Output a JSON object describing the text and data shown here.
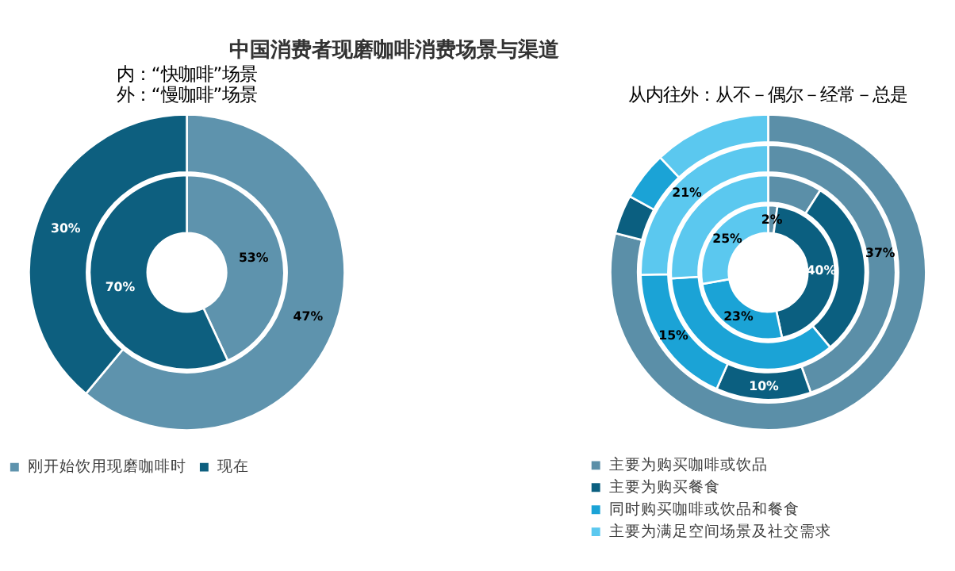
{
  "chart_data": [
    {
      "type": "donut",
      "title": "中国消费者现磨咖啡消费场景与渠道",
      "subtitle": [
        "内：“快咖啡”场景",
        "外：“慢咖啡”场景"
      ],
      "categories": [
        "刚开始饮用现磨咖啡时",
        "现在"
      ],
      "colors": [
        "#5e93ad",
        "#0d5f7f"
      ],
      "legend": "bottom",
      "series": [
        {
          "values": [
            53,
            70
          ],
          "value_labels": [
            "53%",
            "70%"
          ]
        },
        {
          "values": [
            47,
            30
          ],
          "value_labels": [
            "47%",
            "30%"
          ]
        }
      ]
    },
    {
      "type": "donut",
      "subtitle": "从内往外：从不－偶尔－经常－总是",
      "categories": [
        "主要为购买咖啡或饮品",
        "主要为购买餐食",
        "同时购买咖啡或饮品和餐食",
        "主要为满足空间场景及社交需求"
      ],
      "colors": [
        "#5b8fa8",
        "#0b5f80",
        "#1ba3d6",
        "#5bc8ef"
      ],
      "legend": "bottom",
      "series": [
        {
          "values": [
            2,
            40,
            23,
            25
          ],
          "value_labels": [
            "2%",
            "40%",
            "23%",
            "25%"
          ]
        },
        {
          "values": [
            9,
            30,
            35,
            26
          ],
          "value_labels": [
            null,
            null,
            null,
            null
          ]
        },
        {
          "values": [
            37,
            10,
            15,
            21
          ],
          "value_labels": [
            "37%",
            "10%",
            "15%",
            "21%"
          ]
        },
        {
          "values": [
            79,
            4,
            5,
            12
          ],
          "value_labels": [
            null,
            null,
            null,
            null
          ]
        }
      ]
    }
  ]
}
